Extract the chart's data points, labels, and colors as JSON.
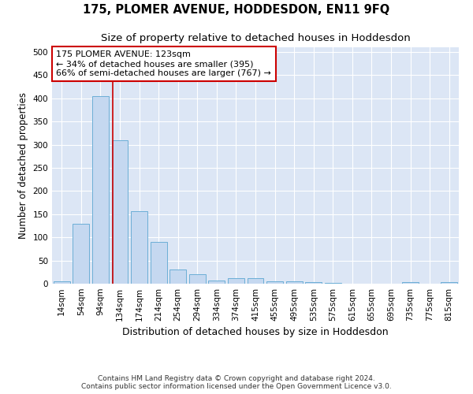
{
  "title": "175, PLOMER AVENUE, HODDESDON, EN11 9FQ",
  "subtitle": "Size of property relative to detached houses in Hoddesdon",
  "xlabel": "Distribution of detached houses by size in Hoddesdon",
  "ylabel": "Number of detached properties",
  "bar_labels": [
    "14sqm",
    "54sqm",
    "94sqm",
    "134sqm",
    "174sqm",
    "214sqm",
    "254sqm",
    "294sqm",
    "334sqm",
    "374sqm",
    "415sqm",
    "455sqm",
    "495sqm",
    "535sqm",
    "575sqm",
    "615sqm",
    "655sqm",
    "695sqm",
    "735sqm",
    "775sqm",
    "815sqm"
  ],
  "bar_values": [
    5,
    130,
    405,
    310,
    157,
    90,
    30,
    20,
    7,
    12,
    12,
    5,
    5,
    3,
    2,
    0,
    0,
    0,
    3,
    0,
    3
  ],
  "bar_color": "#c5d8f0",
  "bar_edge_color": "#6baed6",
  "vline_x": 2.65,
  "vline_color": "#cc0000",
  "annotation_text": "175 PLOMER AVENUE: 123sqm\n← 34% of detached houses are smaller (395)\n66% of semi-detached houses are larger (767) →",
  "annotation_box_color": "#ffffff",
  "annotation_box_edge_color": "#cc0000",
  "ylim": [
    0,
    510
  ],
  "yticks": [
    0,
    50,
    100,
    150,
    200,
    250,
    300,
    350,
    400,
    450,
    500
  ],
  "background_color": "#ffffff",
  "grid_color": "#dce6f5",
  "footer": "Contains HM Land Registry data © Crown copyright and database right 2024.\nContains public sector information licensed under the Open Government Licence v3.0.",
  "title_fontsize": 10.5,
  "subtitle_fontsize": 9.5,
  "xlabel_fontsize": 9,
  "ylabel_fontsize": 8.5,
  "tick_fontsize": 7.5,
  "annotation_fontsize": 8,
  "footer_fontsize": 6.5
}
